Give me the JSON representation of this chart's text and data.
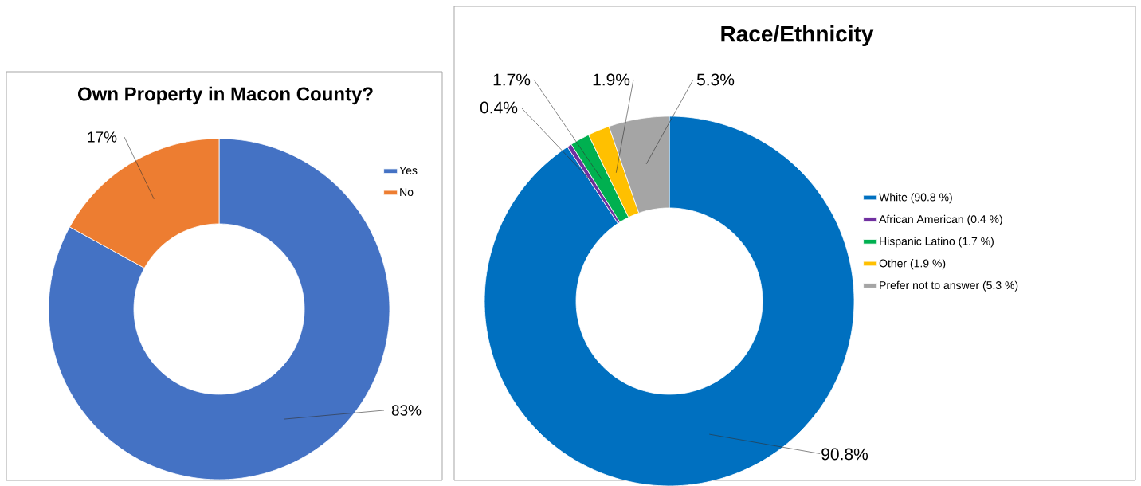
{
  "chart_data": [
    {
      "type": "donut",
      "title": "Own Property in Macon County?",
      "categories": [
        "Yes",
        "No"
      ],
      "values": [
        83,
        17
      ],
      "colors": [
        "#4472c4",
        "#ed7d31"
      ],
      "value_labels": [
        "83%",
        "17%"
      ],
      "legend": "right"
    },
    {
      "type": "donut",
      "title": "Race/Ethnicity",
      "categories": [
        "White    (90.8 %)",
        "African American   (0.4 %)",
        "Hispanic Latino    (1.7 %)",
        "Other    (1.9 %)",
        "Prefer not to answer   (5.3 %)"
      ],
      "values": [
        90.8,
        0.4,
        1.7,
        1.9,
        5.3
      ],
      "colors": [
        "#0070c0",
        "#7030a0",
        "#00b050",
        "#ffc000",
        "#a5a5a5"
      ],
      "value_labels": [
        "90.8%",
        "0.4%",
        "1.7%",
        "1.9%",
        "5.3%"
      ],
      "legend": "right"
    }
  ]
}
